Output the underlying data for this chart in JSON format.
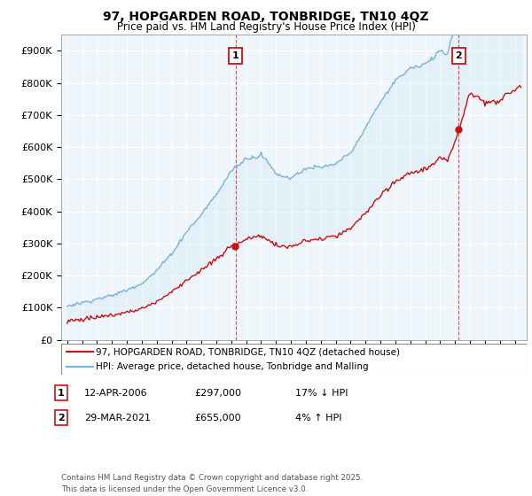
{
  "title": "97, HOPGARDEN ROAD, TONBRIDGE, TN10 4QZ",
  "subtitle": "Price paid vs. HM Land Registry's House Price Index (HPI)",
  "hpi_color": "#7ab4d8",
  "price_color": "#cc1111",
  "vline_color": "#cc1111",
  "fill_color": "#d0e8f5",
  "annotation1_label": "1",
  "annotation1_date": "12-APR-2006",
  "annotation1_price": "£297,000",
  "annotation1_hpi": "17% ↓ HPI",
  "annotation1_year": 2006.28,
  "annotation1_value": 297000,
  "annotation2_label": "2",
  "annotation2_date": "29-MAR-2021",
  "annotation2_price": "£655,000",
  "annotation2_hpi": "4% ↑ HPI",
  "annotation2_year": 2021.24,
  "annotation2_value": 655000,
  "legend_line1": "97, HOPGARDEN ROAD, TONBRIDGE, TN10 4QZ (detached house)",
  "legend_line2": "HPI: Average price, detached house, Tonbridge and Malling",
  "footer": "Contains HM Land Registry data © Crown copyright and database right 2025.\nThis data is licensed under the Open Government Licence v3.0.",
  "ylim_min": 0,
  "ylim_max": 950000,
  "xlim_start": 1994.6,
  "xlim_end": 2025.8,
  "yticks": [
    0,
    100000,
    200000,
    300000,
    400000,
    500000,
    600000,
    700000,
    800000,
    900000
  ],
  "ytick_labels": [
    "£0",
    "£100K",
    "£200K",
    "£300K",
    "£400K",
    "£500K",
    "£600K",
    "£700K",
    "£800K",
    "£900K"
  ],
  "xticks": [
    1995,
    1996,
    1997,
    1998,
    1999,
    2000,
    2001,
    2002,
    2003,
    2004,
    2005,
    2006,
    2007,
    2008,
    2009,
    2010,
    2011,
    2012,
    2013,
    2014,
    2015,
    2016,
    2017,
    2018,
    2019,
    2020,
    2021,
    2022,
    2023,
    2024,
    2025
  ],
  "background_color": "#ffffff",
  "plot_bg_color": "#eef5fb",
  "grid_color": "#ffffff"
}
